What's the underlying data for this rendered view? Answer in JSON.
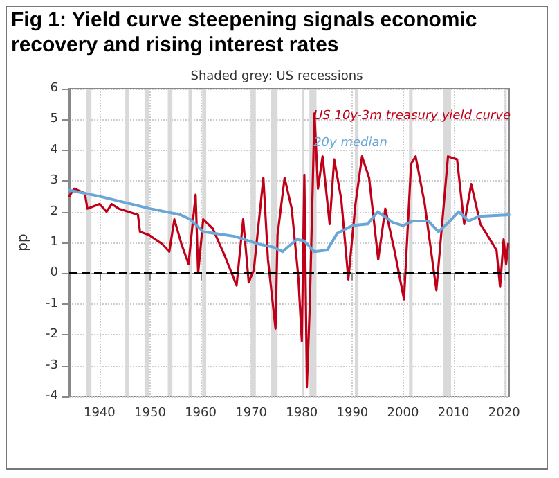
{
  "chart_data": {
    "type": "line",
    "title": "Fig 1: Yield curve steepening signals economic recovery and rising interest rates",
    "subtitle": "Shaded grey: US recessions",
    "ylabel": "pp",
    "series": [
      {
        "name": "US 10y-3m treasury yield curve",
        "color": "#c00018",
        "x": [
          1934,
          1935,
          1937.1,
          1937.6,
          1940,
          1941.4,
          1942.4,
          1943.8,
          1947.6,
          1948,
          1949.7,
          1952.4,
          1953.8,
          1954.8,
          1956.2,
          1957.6,
          1959,
          1959.5,
          1960.5,
          1962.4,
          1964.8,
          1967.1,
          1968.4,
          1969.5,
          1970.5,
          1972.4,
          1973.3,
          1974.8,
          1975.2,
          1976.6,
          1978,
          1979.3,
          1980,
          1980.5,
          1981,
          1981.6,
          1982.5,
          1983.2,
          1984.1,
          1985.5,
          1986.4,
          1987.8,
          1989.2,
          1990.6,
          1991.9,
          1993.3,
          1995.1,
          1996.5,
          1998.3,
          2000.2,
          2001.6,
          2002.5,
          2004.3,
          2006.6,
          2008,
          2008.9,
          2010.7,
          2012.1,
          2013.5,
          2015.3,
          2017.2,
          2018.5,
          2019.2,
          2019.9,
          2020.4,
          2020.8
        ],
        "values": [
          2.5,
          2.75,
          2.6,
          2.1,
          2.25,
          2.0,
          2.25,
          2.1,
          1.9,
          1.35,
          1.25,
          0.95,
          0.7,
          1.75,
          0.95,
          0.3,
          2.55,
          0.0,
          1.75,
          1.45,
          0.55,
          -0.4,
          1.75,
          -0.3,
          0.1,
          3.1,
          0.45,
          -1.8,
          1.25,
          3.1,
          2.1,
          -0.1,
          -2.2,
          3.2,
          -3.7,
          -0.9,
          5.2,
          2.75,
          3.8,
          1.6,
          3.7,
          2.4,
          -0.2,
          2.25,
          3.8,
          3.1,
          0.45,
          2.1,
          0.75,
          -0.85,
          3.55,
          3.8,
          2.25,
          -0.55,
          2.1,
          3.8,
          3.7,
          1.6,
          2.9,
          1.6,
          1.1,
          0.75,
          -0.45,
          1.1,
          0.3,
          0.95
        ]
      },
      {
        "name": "20y median",
        "color": "#6aa6d6",
        "x": [
          1934,
          1940,
          1950,
          1956,
          1958,
          1960.5,
          1966.7,
          1971.4,
          1974.3,
          1976.2,
          1979,
          1980.5,
          1982.5,
          1985,
          1987,
          1990,
          1993,
          1995,
          1998,
          2000,
          2002,
          2005,
          2007,
          2009,
          2011,
          2013,
          2015,
          2021
        ],
        "values": [
          2.7,
          2.5,
          2.1,
          1.9,
          1.75,
          1.35,
          1.2,
          0.95,
          0.85,
          0.7,
          1.1,
          1.05,
          0.7,
          0.75,
          1.3,
          1.55,
          1.6,
          2.0,
          1.65,
          1.55,
          1.7,
          1.7,
          1.35,
          1.65,
          2.0,
          1.7,
          1.85,
          1.9
        ]
      }
    ],
    "xlim": [
      1934,
      2021
    ],
    "xticks": [
      1940,
      1950,
      1960,
      1970,
      1980,
      1990,
      2000,
      2010,
      2020
    ],
    "ylim": [
      -4,
      6
    ],
    "yticks": [
      -4,
      -3,
      -2,
      -1,
      0,
      1,
      2,
      3,
      4,
      5,
      6
    ],
    "ref_lines": [
      {
        "axis": "y",
        "value": 0,
        "color": "#000000",
        "line_style": "dashed"
      }
    ],
    "bands": [
      {
        "axis": "x",
        "from": 1937.4,
        "to": 1938.4,
        "color": "#d9d9d9"
      },
      {
        "axis": "x",
        "from": 1945.1,
        "to": 1945.8,
        "color": "#d9d9d9"
      },
      {
        "axis": "x",
        "from": 1948.9,
        "to": 1949.8,
        "color": "#d9d9d9"
      },
      {
        "axis": "x",
        "from": 1953.5,
        "to": 1954.4,
        "color": "#d9d9d9"
      },
      {
        "axis": "x",
        "from": 1957.6,
        "to": 1958.3,
        "color": "#d9d9d9"
      },
      {
        "axis": "x",
        "from": 1960.3,
        "to": 1961.1,
        "color": "#d9d9d9"
      },
      {
        "axis": "x",
        "from": 1969.9,
        "to": 1970.9,
        "color": "#d9d9d9"
      },
      {
        "axis": "x",
        "from": 1973.9,
        "to": 1975.2,
        "color": "#d9d9d9"
      },
      {
        "axis": "x",
        "from": 1980.0,
        "to": 1980.5,
        "color": "#d9d9d9"
      },
      {
        "axis": "x",
        "from": 1981.5,
        "to": 1982.9,
        "color": "#d9d9d9"
      },
      {
        "axis": "x",
        "from": 1990.5,
        "to": 1991.2,
        "color": "#d9d9d9"
      },
      {
        "axis": "x",
        "from": 2001.2,
        "to": 2001.9,
        "color": "#d9d9d9"
      },
      {
        "axis": "x",
        "from": 2007.9,
        "to": 2009.5,
        "color": "#d9d9d9"
      },
      {
        "axis": "x",
        "from": 2020.1,
        "to": 2020.5,
        "color": "#d9d9d9"
      }
    ],
    "grid": true,
    "legend": "top right",
    "marker": "none",
    "line_style": "solid"
  }
}
